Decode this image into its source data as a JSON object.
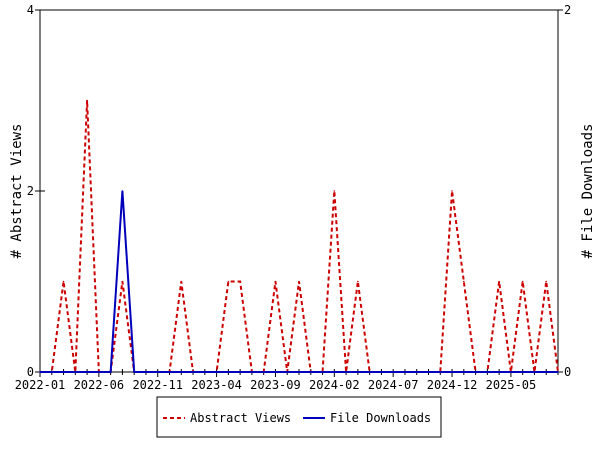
{
  "chart_data": {
    "type": "line",
    "title": "",
    "xlabel": "",
    "ylabel": "# Abstract Views",
    "ylabel_right": "# File Downloads",
    "ylim": [
      0,
      4
    ],
    "ylim_right": [
      0,
      2
    ],
    "yticks": [
      "0",
      "2",
      "4"
    ],
    "yticks_right": [
      "0",
      "2"
    ],
    "x_start": "2022-01",
    "x_tick_labels": [
      "2022-01",
      "2022-06",
      "2022-11",
      "2023-04",
      "2023-09",
      "2024-02",
      "2024-07",
      "2024-12",
      "2025-05"
    ],
    "x_tick_every": 5,
    "series": [
      {
        "name": "Abstract Views",
        "axis": "left",
        "color": "#cc0000",
        "style": "dashed",
        "values": [
          0,
          0,
          1,
          0,
          3,
          0,
          0,
          1,
          0,
          0,
          0,
          0,
          1,
          0,
          0,
          0,
          1,
          1,
          0,
          0,
          1,
          0,
          1,
          0,
          0,
          2,
          0,
          1,
          0,
          0,
          0,
          0,
          0,
          0,
          0,
          2,
          1,
          0,
          0,
          1,
          0,
          1,
          0,
          1,
          0
        ]
      },
      {
        "name": "File Downloads",
        "axis": "right",
        "color": "#0000bb",
        "style": "solid",
        "values": [
          0,
          0,
          0,
          0,
          0,
          0,
          0,
          1,
          0,
          0,
          0,
          0,
          0,
          0,
          0,
          0,
          0,
          0,
          0,
          0,
          0,
          0,
          0,
          0,
          0,
          0,
          0,
          0,
          0,
          0,
          0,
          0,
          0,
          0,
          0,
          0,
          0,
          0,
          0,
          0,
          0,
          0,
          0,
          0,
          0
        ]
      }
    ],
    "legend": {
      "position": "bottom-center",
      "items": [
        "Abstract Views",
        "File Downloads"
      ]
    }
  }
}
